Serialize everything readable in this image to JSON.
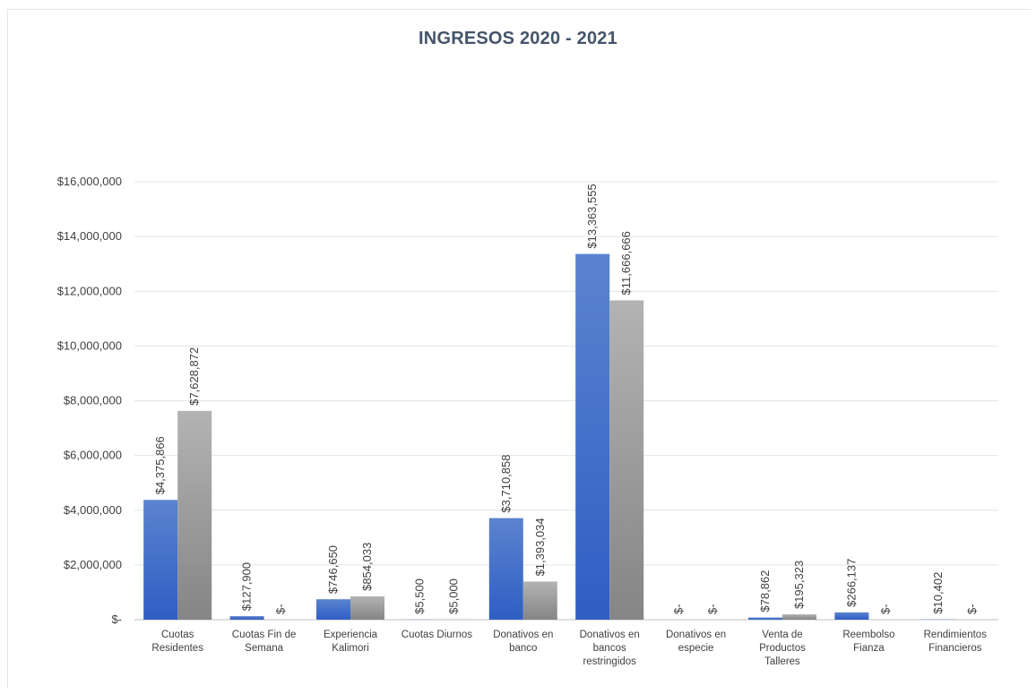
{
  "chart_data": {
    "type": "bar",
    "title": "INGRESOS 2020 - 2021",
    "categories": [
      [
        "Cuotas",
        "Residentes"
      ],
      [
        "Cuotas Fin de",
        "Semana"
      ],
      [
        "Experiencia",
        "Kalimori"
      ],
      [
        "Cuotas Diurnos"
      ],
      [
        "Donativos en",
        "banco"
      ],
      [
        "Donativos en",
        "bancos",
        "restringidos"
      ],
      [
        "Donativos en",
        "especie"
      ],
      [
        "Venta de",
        "Productos",
        "Talleres"
      ],
      [
        "Reembolso",
        "Fianza"
      ],
      [
        "Rendimientos",
        "Financieros"
      ]
    ],
    "series": [
      {
        "values": [
          4375866,
          127900,
          746650,
          5500,
          3710858,
          13363555,
          0,
          78862,
          266137,
          10402
        ],
        "labels": [
          "$4,375,866",
          "$127,900",
          "$746,650",
          "$5,500",
          "$3,710,858",
          "$13,363,555",
          "$-",
          "$78,862",
          "$266,137",
          "$10,402"
        ],
        "color": "#4472c4"
      },
      {
        "values": [
          7628872,
          0,
          854033,
          5000,
          1393034,
          11666666,
          0,
          195323,
          0,
          0
        ],
        "labels": [
          "$7,628,872",
          "$-",
          "$854,033",
          "$5,000",
          "$1,393,034",
          "$11,666,666",
          "$-",
          "$195,323",
          "$-",
          "$-"
        ],
        "color": "#a5a5a5"
      }
    ],
    "ylim": [
      0,
      16000000
    ],
    "yticks": [
      0,
      2000000,
      4000000,
      6000000,
      8000000,
      10000000,
      12000000,
      14000000,
      16000000
    ],
    "ytick_labels": [
      "$-",
      "$2,000,000",
      "$4,000,000",
      "$6,000,000",
      "$8,000,000",
      "$10,000,000",
      "$12,000,000",
      "$14,000,000",
      "$16,000,000"
    ],
    "grid": true,
    "legend": "none"
  }
}
